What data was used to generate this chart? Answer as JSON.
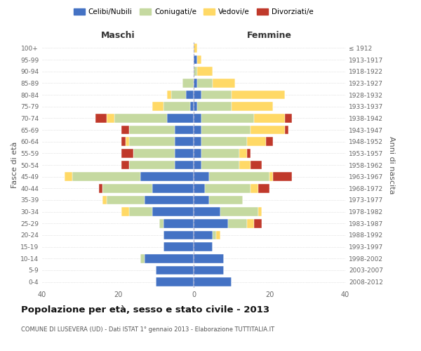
{
  "age_groups": [
    "0-4",
    "5-9",
    "10-14",
    "15-19",
    "20-24",
    "25-29",
    "30-34",
    "35-39",
    "40-44",
    "45-49",
    "50-54",
    "55-59",
    "60-64",
    "65-69",
    "70-74",
    "75-79",
    "80-84",
    "85-89",
    "90-94",
    "95-99",
    "100+"
  ],
  "birth_years": [
    "2008-2012",
    "2003-2007",
    "1998-2002",
    "1993-1997",
    "1988-1992",
    "1983-1987",
    "1978-1982",
    "1973-1977",
    "1968-1972",
    "1963-1967",
    "1958-1962",
    "1953-1957",
    "1948-1952",
    "1943-1947",
    "1938-1942",
    "1933-1937",
    "1928-1932",
    "1923-1927",
    "1918-1922",
    "1913-1917",
    "≤ 1912"
  ],
  "males": {
    "celibi": [
      10,
      10,
      13,
      8,
      8,
      8,
      11,
      13,
      11,
      14,
      5,
      5,
      5,
      5,
      7,
      1,
      2,
      0,
      0,
      0,
      0
    ],
    "coniugati": [
      0,
      0,
      1,
      0,
      0,
      1,
      6,
      10,
      13,
      18,
      12,
      11,
      12,
      12,
      14,
      7,
      4,
      3,
      0,
      0,
      0
    ],
    "vedovi": [
      0,
      0,
      0,
      0,
      0,
      0,
      2,
      1,
      0,
      2,
      0,
      0,
      1,
      0,
      2,
      3,
      1,
      0,
      0,
      0,
      0
    ],
    "divorziati": [
      0,
      0,
      0,
      0,
      0,
      0,
      0,
      0,
      1,
      0,
      2,
      3,
      1,
      2,
      3,
      0,
      0,
      0,
      0,
      0,
      0
    ]
  },
  "females": {
    "nubili": [
      10,
      8,
      8,
      5,
      5,
      9,
      7,
      4,
      3,
      4,
      2,
      2,
      2,
      2,
      2,
      1,
      2,
      1,
      0,
      1,
      0
    ],
    "coniugate": [
      0,
      0,
      0,
      0,
      1,
      5,
      10,
      9,
      12,
      16,
      10,
      10,
      12,
      13,
      14,
      9,
      8,
      4,
      1,
      0,
      0
    ],
    "vedove": [
      0,
      0,
      0,
      0,
      1,
      2,
      1,
      0,
      2,
      1,
      3,
      2,
      5,
      9,
      8,
      11,
      14,
      6,
      4,
      1,
      1
    ],
    "divorziate": [
      0,
      0,
      0,
      0,
      0,
      2,
      0,
      0,
      3,
      5,
      3,
      1,
      2,
      1,
      2,
      0,
      0,
      0,
      0,
      0,
      0
    ]
  },
  "colors": {
    "celibi": "#4472c4",
    "coniugati": "#c5d9a0",
    "vedovi": "#ffd966",
    "divorziati": "#c0392b"
  },
  "xlim": 40,
  "title": "Popolazione per età, sesso e stato civile - 2013",
  "subtitle": "COMUNE DI LUSEVERA (UD) - Dati ISTAT 1° gennaio 2013 - Elaborazione TUTTITALIA.IT",
  "ylabel_left": "Fasce di età",
  "ylabel_right": "Anni di nascita",
  "xlabel_left": "Maschi",
  "xlabel_right": "Femmine",
  "legend_labels": [
    "Celibi/Nubili",
    "Coniugati/e",
    "Vedovi/e",
    "Divorziati/e"
  ],
  "bg_color": "#ffffff",
  "grid_color": "#cccccc"
}
